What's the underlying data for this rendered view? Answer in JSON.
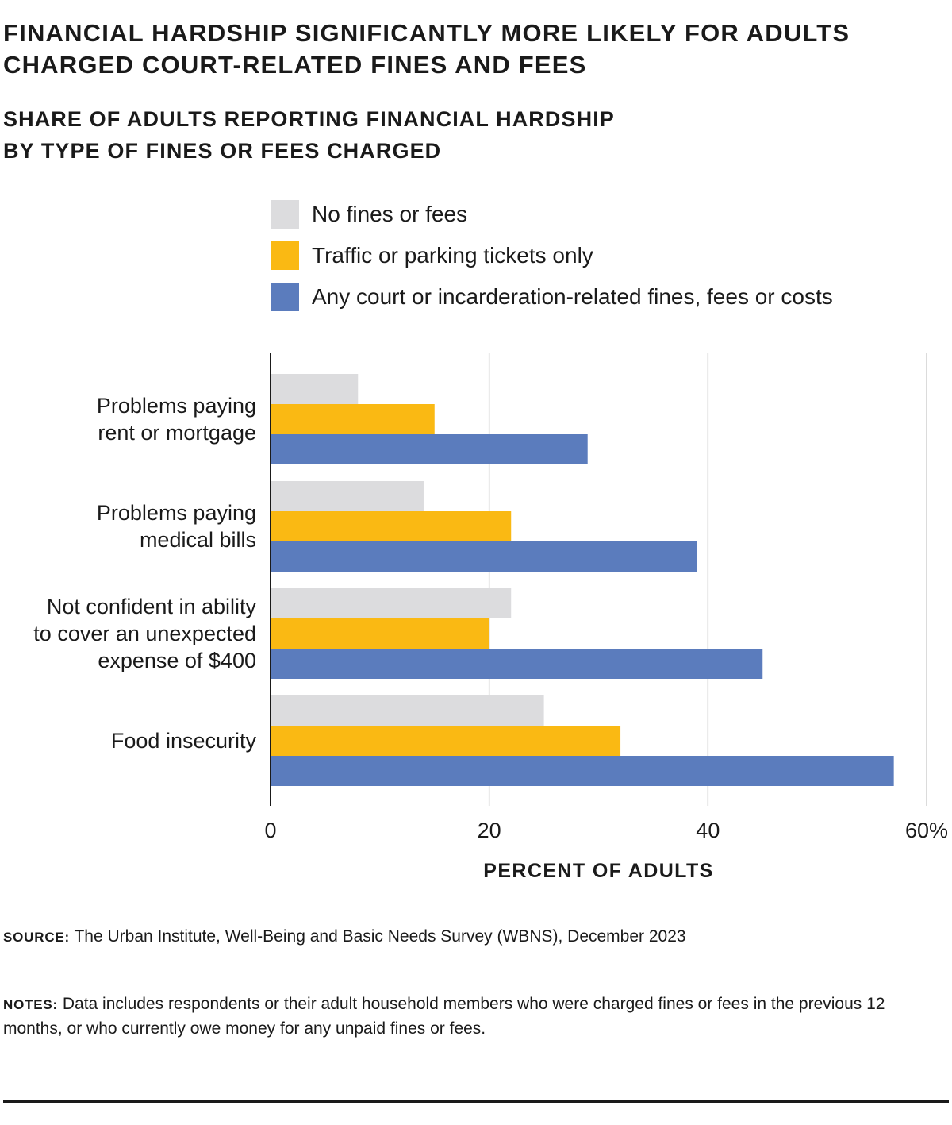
{
  "title": "Financial hardship significantly more likely for adults\ncharged court-related fines and fees",
  "subtitle": "Share of adults reporting financial hardship\nby type of fines or fees charged",
  "chart_data": {
    "type": "bar",
    "orientation": "horizontal",
    "categories": [
      "Problems paying\nrent or mortgage",
      "Problems paying\nmedical bills",
      "Not confident in ability\nto cover an unexpected\nexpense of $400",
      "Food insecurity"
    ],
    "series": [
      {
        "name": "No fines or fees",
        "color": "#dcdcde",
        "values": [
          8,
          14,
          22,
          25
        ]
      },
      {
        "name": "Traffic or parking tickets only",
        "color": "#fab913",
        "values": [
          15,
          22,
          20,
          32
        ]
      },
      {
        "name": "Any court or incarderation-related fines, fees or costs",
        "color": "#5b7cbd",
        "values": [
          29,
          39,
          45,
          57
        ]
      }
    ],
    "xlim": [
      0,
      60
    ],
    "x_ticks": [
      "0",
      "20",
      "40",
      "60%"
    ],
    "xlabel": "Percent of adults",
    "ylabel": "",
    "grid": "vertical",
    "legend_position": "top"
  },
  "source": {
    "label": "Source:",
    "text": " The Urban Institute, Well-Being and Basic Needs Survey (WBNS), December 2023"
  },
  "notes": {
    "label": "Notes:",
    "text": " Data includes respondents or their adult household members who were charged fines or fees in the previous 12 months, or who currently owe money for any unpaid fines or fees."
  }
}
